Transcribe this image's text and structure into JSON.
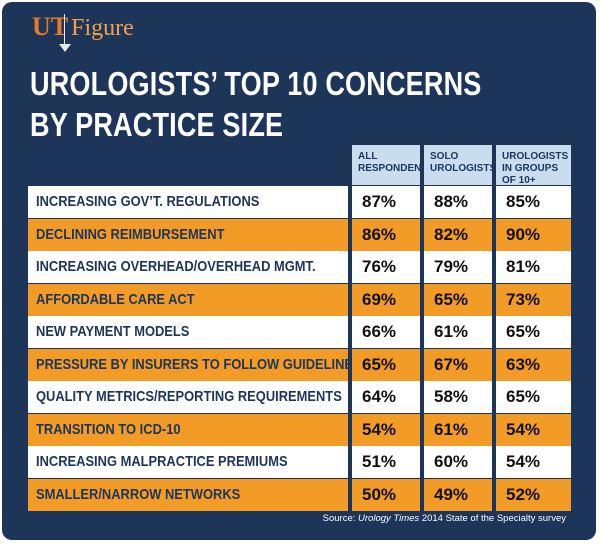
{
  "brand": {
    "ut": "UT",
    "figure": "Figure"
  },
  "title_line1": "UROLOGISTS’ TOP 10 CONCERNS",
  "title_line2": "BY PRACTICE SIZE",
  "source_prefix": "Source: ",
  "source_italic": "Urology Times",
  "source_suffix": " 2014 State of the Specialty survey",
  "colors": {
    "background": "#1c3558",
    "header": "#c9ddef",
    "orange": "#f29b27",
    "white": "#ffffff"
  },
  "chart_data": {
    "type": "table",
    "columns": [
      "ALL RESPONDENTS",
      "SOLO UROLOGISTS",
      "UROLOGISTS IN GROUPS OF 10+"
    ],
    "rows": [
      {
        "label": "INCREASING GOV’T. REGULATIONS",
        "values": [
          "87%",
          "88%",
          "85%"
        ]
      },
      {
        "label": "DECLINING REIMBURSEMENT",
        "values": [
          "86%",
          "82%",
          "90%"
        ]
      },
      {
        "label": "INCREASING OVERHEAD/OVERHEAD MGMT.",
        "values": [
          "76%",
          "79%",
          "81%"
        ]
      },
      {
        "label": "AFFORDABLE CARE ACT",
        "values": [
          "69%",
          "65%",
          "73%"
        ]
      },
      {
        "label": "NEW PAYMENT MODELS",
        "values": [
          "66%",
          "61%",
          "65%"
        ]
      },
      {
        "label": "PRESSURE BY INSURERS TO FOLLOW GUIDELINES",
        "values": [
          "65%",
          "67%",
          "63%"
        ]
      },
      {
        "label": "QUALITY METRICS/REPORTING REQUIREMENTS",
        "values": [
          "64%",
          "58%",
          "65%"
        ]
      },
      {
        "label": "TRANSITION TO ICD-10",
        "values": [
          "54%",
          "61%",
          "54%"
        ]
      },
      {
        "label": "INCREASING MALPRACTICE PREMIUMS",
        "values": [
          "51%",
          "60%",
          "54%"
        ]
      },
      {
        "label": "SMALLER/NARROW NETWORKS",
        "values": [
          "50%",
          "49%",
          "52%"
        ]
      }
    ]
  }
}
